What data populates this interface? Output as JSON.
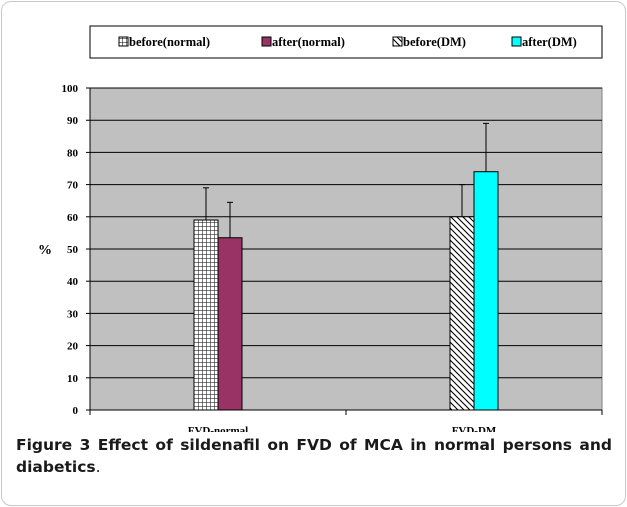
{
  "chart_data": {
    "type": "bar",
    "categories": [
      "FVD-normal",
      "FVD-DM"
    ],
    "series": [
      {
        "name": "before(normal)",
        "values": [
          59,
          null
        ],
        "errors": [
          10,
          null
        ],
        "color": "#ffffff",
        "pattern": "grid"
      },
      {
        "name": "after(normal)",
        "values": [
          53.5,
          null
        ],
        "errors": [
          11,
          null
        ],
        "color": "#993366",
        "pattern": "solid"
      },
      {
        "name": "before(DM)",
        "values": [
          null,
          60
        ],
        "errors": [
          null,
          10
        ],
        "color": "#ffffff",
        "pattern": "diagonal"
      },
      {
        "name": "after(DM)",
        "values": [
          null,
          74
        ],
        "errors": [
          null,
          15
        ],
        "color": "#00ffff",
        "pattern": "solid"
      }
    ],
    "ylabel": "%",
    "ylim": [
      0,
      100
    ],
    "yticks": [
      0,
      10,
      20,
      30,
      40,
      50,
      60,
      70,
      80,
      90,
      100
    ],
    "ytick_labels": [
      "0",
      "10",
      "20",
      "30",
      "40",
      "50",
      "60",
      "70",
      "80",
      "90",
      "100"
    ],
    "grid": true,
    "legend": "top",
    "plot_background": "#c0c0c0"
  },
  "caption": {
    "label": "Figure 3",
    "text": " Effect of sildenafil on FVD of MCA in normal persons and diabetics",
    "end": "."
  }
}
